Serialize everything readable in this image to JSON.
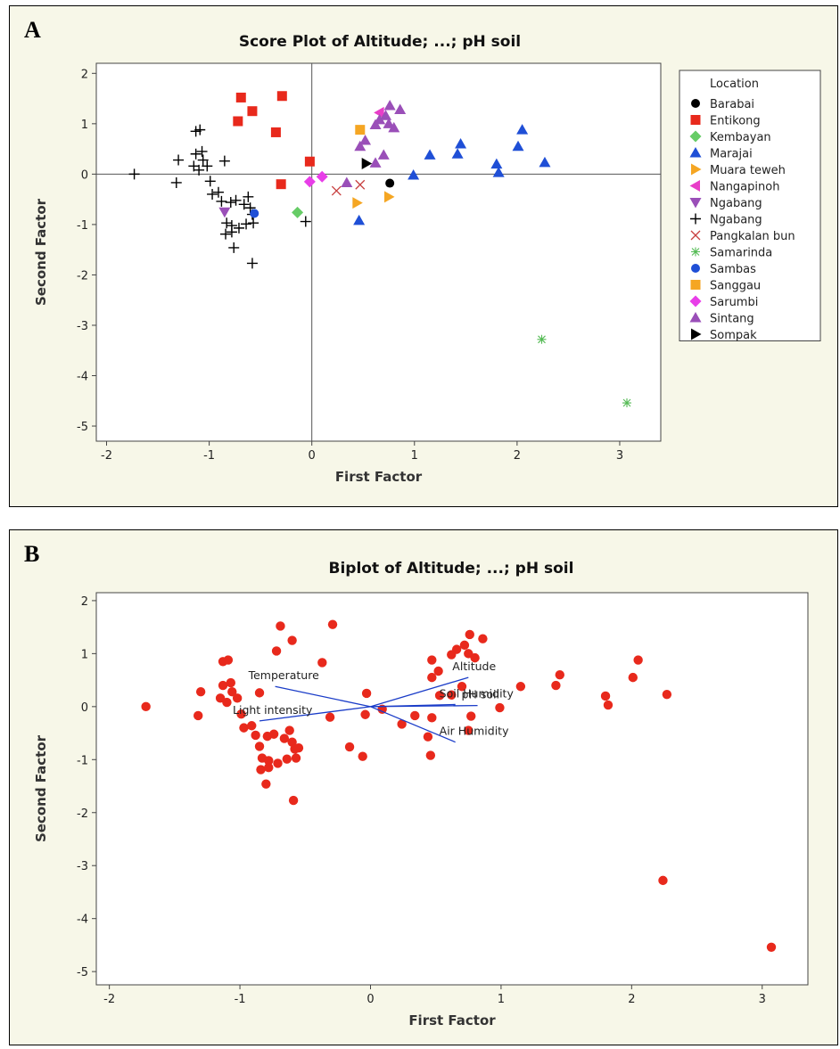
{
  "chart_data": [
    {
      "panel_label": "A",
      "type": "scatter",
      "title": "Score Plot of Altitude; ...; pH soil",
      "xlabel": "First Factor",
      "ylabel": "Second Factor",
      "xlim": [
        -2.1,
        3.4
      ],
      "ylim": [
        -5.3,
        2.2
      ],
      "xticks": [
        -2,
        -1,
        0,
        1,
        2,
        3
      ],
      "yticks": [
        2,
        1,
        0,
        -1,
        -2,
        -3,
        -4,
        -5
      ],
      "reference_lines": {
        "x": 0,
        "y": 0
      },
      "legend": {
        "title": "Location",
        "placement": "right"
      },
      "series": [
        {
          "name": "Barabai",
          "marker": "circle",
          "color": "#000000",
          "points": [
            [
              0.76,
              -0.18
            ]
          ]
        },
        {
          "name": "Entikong",
          "marker": "square",
          "color": "#e8291c",
          "points": [
            [
              -0.69,
              1.52
            ],
            [
              -0.58,
              1.25
            ],
            [
              -0.72,
              1.05
            ],
            [
              -0.29,
              1.55
            ],
            [
              -0.35,
              0.83
            ],
            [
              -0.02,
              0.25
            ],
            [
              -0.3,
              -0.2
            ]
          ]
        },
        {
          "name": "Kembayan",
          "marker": "diamond",
          "color": "#66cc66",
          "points": [
            [
              -0.14,
              -0.76
            ]
          ]
        },
        {
          "name": "Marajai",
          "marker": "triangle-up",
          "color": "#1f4fd6",
          "points": [
            [
              2.05,
              0.88
            ],
            [
              2.01,
              0.55
            ],
            [
              1.45,
              0.6
            ],
            [
              1.42,
              0.4
            ],
            [
              1.15,
              0.38
            ],
            [
              1.8,
              0.2
            ],
            [
              1.82,
              0.03
            ],
            [
              2.27,
              0.23
            ],
            [
              0.99,
              -0.02
            ],
            [
              0.46,
              -0.92
            ]
          ]
        },
        {
          "name": "Muara teweh",
          "marker": "triangle-right",
          "color": "#f5a623",
          "points": [
            [
              0.44,
              -0.57
            ],
            [
              0.75,
              -0.45
            ]
          ]
        },
        {
          "name": "Nangapinoh",
          "marker": "triangle-left",
          "color": "#e83ec8",
          "points": [
            [
              0.66,
              1.22
            ]
          ]
        },
        {
          "name": "Ngabang",
          "marker": "triangle-down",
          "color": "#9a4fb8",
          "points": [
            [
              -0.85,
              -0.75
            ]
          ]
        },
        {
          "name": "Ngabang",
          "marker": "plus",
          "color": "#000000",
          "points": [
            [
              -1.73,
              0.0
            ],
            [
              -1.3,
              0.28
            ],
            [
              -1.32,
              -0.17
            ],
            [
              -1.13,
              0.85
            ],
            [
              -1.09,
              0.88
            ],
            [
              -1.07,
              0.45
            ],
            [
              -1.13,
              0.4
            ],
            [
              -1.15,
              0.16
            ],
            [
              -1.1,
              0.08
            ],
            [
              -1.02,
              0.16
            ],
            [
              -1.06,
              0.28
            ],
            [
              -0.85,
              0.26
            ],
            [
              -0.99,
              -0.14
            ],
            [
              -0.97,
              -0.4
            ],
            [
              -0.91,
              -0.36
            ],
            [
              -0.88,
              -0.54
            ],
            [
              -0.79,
              -0.56
            ],
            [
              -0.74,
              -0.52
            ],
            [
              -0.66,
              -0.6
            ],
            [
              -0.62,
              -0.45
            ],
            [
              -0.6,
              -0.67
            ],
            [
              -0.58,
              -0.8
            ],
            [
              -0.83,
              -0.97
            ],
            [
              -0.78,
              -1.02
            ],
            [
              -0.71,
              -1.07
            ],
            [
              -0.84,
              -1.19
            ],
            [
              -0.78,
              -1.15
            ],
            [
              -0.64,
              -0.99
            ],
            [
              -0.57,
              -0.97
            ],
            [
              -0.76,
              -1.46
            ],
            [
              -0.58,
              -1.77
            ],
            [
              -0.06,
              -0.94
            ]
          ]
        },
        {
          "name": "Pangkalan bun",
          "marker": "x",
          "color": "#c84040",
          "points": [
            [
              0.24,
              -0.33
            ],
            [
              0.47,
              -0.21
            ]
          ]
        },
        {
          "name": "Samarinda",
          "marker": "asterisk",
          "color": "#55bb55",
          "points": [
            [
              2.24,
              -3.28
            ],
            [
              3.07,
              -4.54
            ]
          ]
        },
        {
          "name": "Sambas",
          "marker": "circle",
          "color": "#1f4fd6",
          "points": [
            [
              -0.56,
              -0.78
            ]
          ]
        },
        {
          "name": "Sanggau",
          "marker": "square",
          "color": "#f5a623",
          "points": [
            [
              0.47,
              0.88
            ]
          ]
        },
        {
          "name": "Sarumbi",
          "marker": "diamond",
          "color": "#e83ee8",
          "points": [
            [
              -0.02,
              -0.15
            ],
            [
              0.1,
              -0.05
            ]
          ]
        },
        {
          "name": "Sintang",
          "marker": "triangle-up",
          "color": "#9a4fb8",
          "points": [
            [
              0.76,
              1.36
            ],
            [
              0.86,
              1.28
            ],
            [
              0.72,
              1.16
            ],
            [
              0.66,
              1.08
            ],
            [
              0.75,
              1.0
            ],
            [
              0.62,
              0.98
            ],
            [
              0.8,
              0.92
            ],
            [
              0.52,
              0.67
            ],
            [
              0.47,
              0.55
            ],
            [
              0.7,
              0.38
            ],
            [
              0.62,
              0.22
            ],
            [
              0.34,
              -0.17
            ]
          ]
        },
        {
          "name": "Sompak",
          "marker": "triangle-right",
          "color": "#000000",
          "points": [
            [
              0.53,
              0.21
            ]
          ]
        }
      ]
    },
    {
      "panel_label": "B",
      "type": "scatter",
      "title": "Biplot of Altitude; ...; pH soil",
      "xlabel": "First Factor",
      "ylabel": "Second Factor",
      "xlim": [
        -2.1,
        3.35
      ],
      "ylim": [
        -5.25,
        2.15
      ],
      "xticks": [
        -2,
        -1,
        0,
        1,
        2,
        3
      ],
      "yticks": [
        2,
        1,
        0,
        -1,
        -2,
        -3,
        -4,
        -5
      ],
      "point_color": "#e8291c",
      "vector_color": "#1a3cc8",
      "vectors": [
        {
          "label": "Altitude",
          "x": 0.75,
          "y": 0.55
        },
        {
          "label": "Temperature",
          "x": -0.73,
          "y": 0.38
        },
        {
          "label": "Light intensity",
          "x": -0.85,
          "y": -0.27
        },
        {
          "label": "Soil Humidity",
          "x": 0.65,
          "y": 0.04
        },
        {
          "label": "pH soil",
          "x": 0.82,
          "y": 0.02
        },
        {
          "label": "Air Humidity",
          "x": 0.65,
          "y": -0.67
        }
      ],
      "points": [
        [
          -1.72,
          0.0
        ],
        [
          -1.3,
          0.28
        ],
        [
          -1.32,
          -0.17
        ],
        [
          -1.13,
          0.85
        ],
        [
          -1.09,
          0.88
        ],
        [
          -1.07,
          0.45
        ],
        [
          -1.13,
          0.4
        ],
        [
          -1.15,
          0.16
        ],
        [
          -1.1,
          0.08
        ],
        [
          -1.02,
          0.16
        ],
        [
          -1.06,
          0.28
        ],
        [
          -0.85,
          0.26
        ],
        [
          -0.99,
          -0.14
        ],
        [
          -0.97,
          -0.4
        ],
        [
          -0.91,
          -0.36
        ],
        [
          -0.88,
          -0.54
        ],
        [
          -0.79,
          -0.56
        ],
        [
          -0.74,
          -0.52
        ],
        [
          -0.66,
          -0.6
        ],
        [
          -0.62,
          -0.45
        ],
        [
          -0.6,
          -0.67
        ],
        [
          -0.58,
          -0.8
        ],
        [
          -0.83,
          -0.97
        ],
        [
          -0.78,
          -1.02
        ],
        [
          -0.71,
          -1.07
        ],
        [
          -0.84,
          -1.19
        ],
        [
          -0.78,
          -1.15
        ],
        [
          -0.64,
          -0.99
        ],
        [
          -0.57,
          -0.97
        ],
        [
          -0.8,
          -1.46
        ],
        [
          -0.59,
          -1.77
        ],
        [
          -0.06,
          -0.94
        ],
        [
          -0.69,
          1.52
        ],
        [
          -0.6,
          1.25
        ],
        [
          -0.72,
          1.05
        ],
        [
          -0.29,
          1.55
        ],
        [
          -0.37,
          0.83
        ],
        [
          -0.03,
          0.25
        ],
        [
          -0.31,
          -0.2
        ],
        [
          -0.16,
          -0.76
        ],
        [
          -0.04,
          -0.15
        ],
        [
          0.09,
          -0.05
        ],
        [
          -0.55,
          -0.78
        ],
        [
          -0.85,
          -0.75
        ],
        [
          0.76,
          1.36
        ],
        [
          0.86,
          1.28
        ],
        [
          0.72,
          1.16
        ],
        [
          0.66,
          1.08
        ],
        [
          0.75,
          1.0
        ],
        [
          0.62,
          0.98
        ],
        [
          0.8,
          0.92
        ],
        [
          0.52,
          0.67
        ],
        [
          0.47,
          0.88
        ],
        [
          0.47,
          0.55
        ],
        [
          0.7,
          0.38
        ],
        [
          0.62,
          0.22
        ],
        [
          0.53,
          0.21
        ],
        [
          0.34,
          -0.17
        ],
        [
          0.24,
          -0.33
        ],
        [
          0.47,
          -0.21
        ],
        [
          0.44,
          -0.57
        ],
        [
          0.75,
          -0.45
        ],
        [
          0.77,
          -0.18
        ],
        [
          0.46,
          -0.92
        ],
        [
          0.99,
          -0.02
        ],
        [
          1.15,
          0.38
        ],
        [
          1.42,
          0.4
        ],
        [
          1.45,
          0.6
        ],
        [
          1.8,
          0.2
        ],
        [
          1.82,
          0.03
        ],
        [
          2.01,
          0.55
        ],
        [
          2.05,
          0.88
        ],
        [
          2.27,
          0.23
        ],
        [
          2.24,
          -3.28
        ],
        [
          3.07,
          -4.54
        ]
      ]
    }
  ]
}
